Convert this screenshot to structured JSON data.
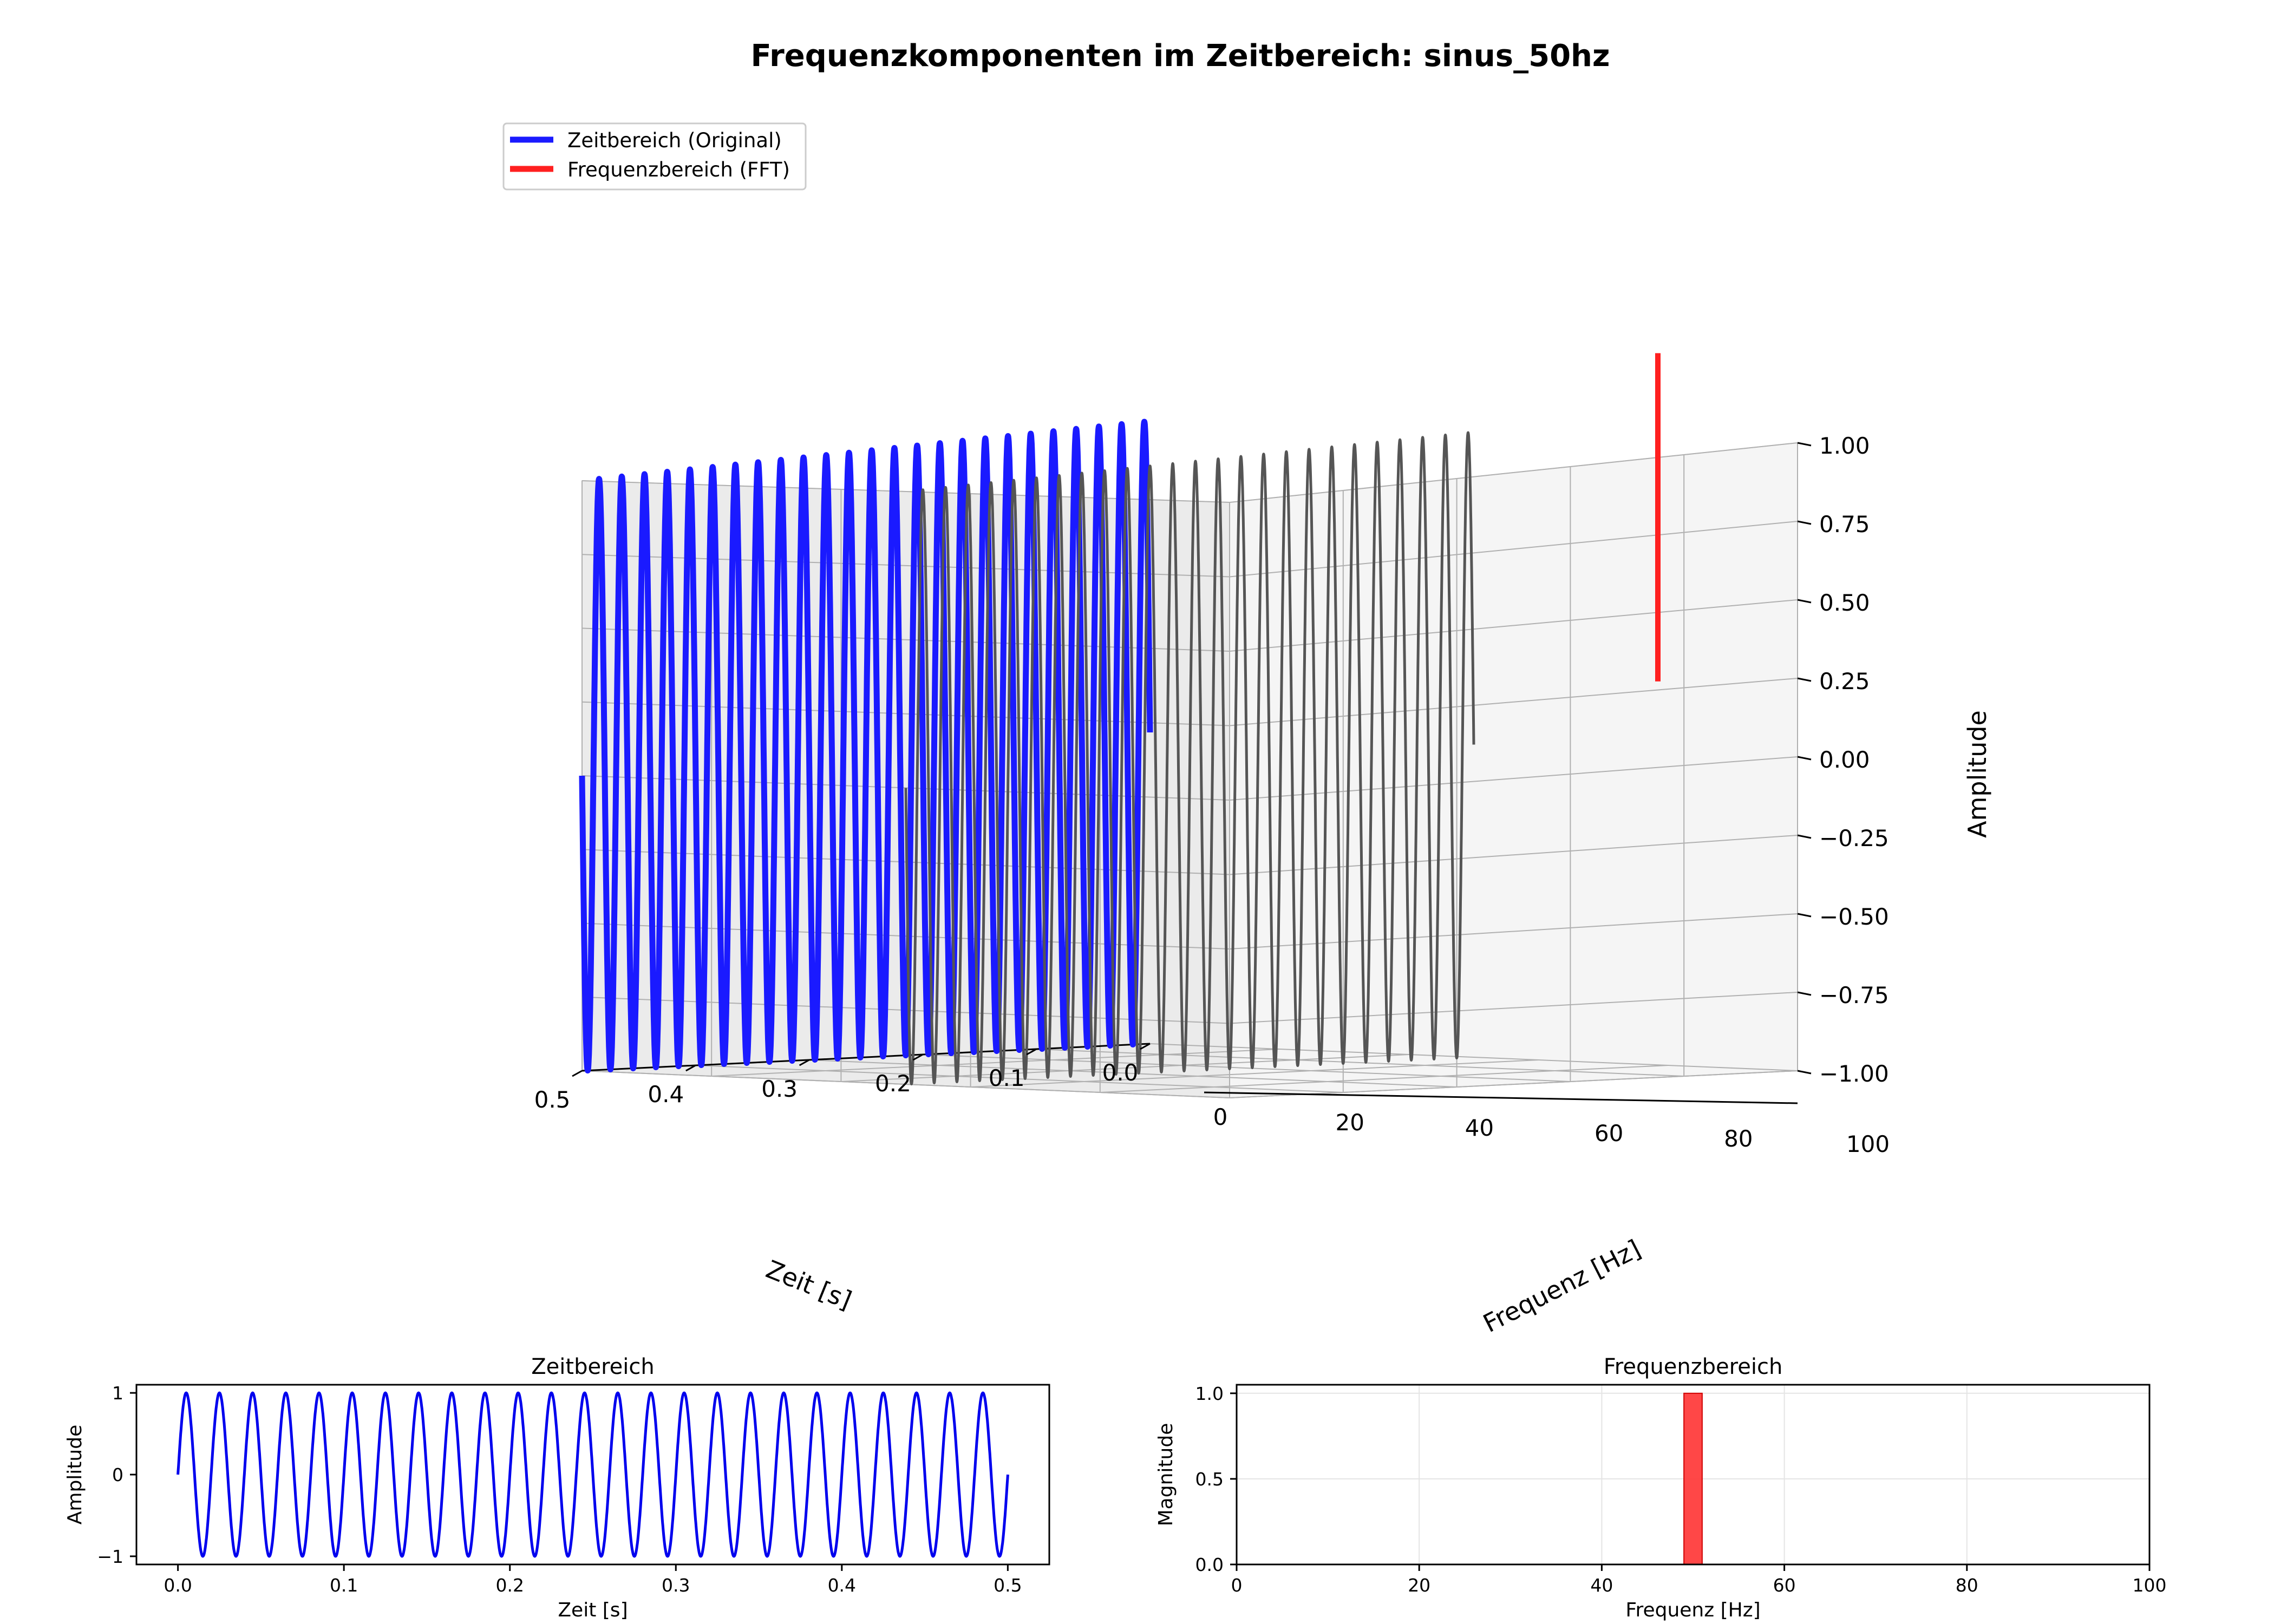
{
  "figure": {
    "title": "Frequenzkomponenten im Zeitbereich: sinus_50hz"
  },
  "legend": {
    "placement": "top-left",
    "items": [
      {
        "label": "Zeitbereich (Original)",
        "color": "#1a1aff"
      },
      {
        "label": "Frequenzbereich (FFT)",
        "color": "#ff2020"
      }
    ]
  },
  "chart_data": [
    {
      "type": "line",
      "projection": "3d",
      "title": "",
      "xlabel": "Zeit [s]",
      "ylabel": "Frequenz [Hz]",
      "zlabel": "Amplitude",
      "xlim": [
        0,
        0.5
      ],
      "ylim": [
        0,
        100
      ],
      "zlim": [
        -1,
        1
      ],
      "x_ticks": [
        "0.0",
        "0.1",
        "0.2",
        "0.3",
        "0.4",
        "0.5"
      ],
      "y_ticks": [
        "0",
        "20",
        "40",
        "60",
        "80",
        "100"
      ],
      "z_ticks": [
        "−1.00",
        "−0.75",
        "−0.50",
        "−0.25",
        "0.00",
        "0.25",
        "0.50",
        "0.75",
        "1.00"
      ],
      "grid": true,
      "series": [
        {
          "name": "Zeitbereich (Original)",
          "kind": "sine",
          "frequency_hz": 50,
          "amplitude": 1.0,
          "t_start": 0,
          "t_end": 0.5,
          "freq_position": 0,
          "color": "#1a1aff"
        },
        {
          "name": "",
          "kind": "sine",
          "frequency_hz": 50,
          "amplitude": 1.0,
          "t_start": 0,
          "t_end": 0.5,
          "freq_position": 50,
          "color": "#555555"
        },
        {
          "name": "Frequenzbereich (FFT)",
          "kind": "segment",
          "time_position": 0,
          "frequency_hz": 50,
          "z_from": -0.3,
          "z_to": 0.75,
          "color": "#ff2020"
        }
      ]
    },
    {
      "type": "line",
      "title": "Zeitbereich",
      "xlabel": "Zeit [s]",
      "ylabel": "Amplitude",
      "xlim": [
        -0.025,
        0.525
      ],
      "ylim": [
        -1.1,
        1.1
      ],
      "x_ticks": [
        "0.0",
        "0.1",
        "0.2",
        "0.3",
        "0.4",
        "0.5"
      ],
      "y_ticks": [
        "−1",
        "0",
        "1"
      ],
      "grid": false,
      "series": [
        {
          "name": "",
          "kind": "sine",
          "frequency_hz": 50,
          "amplitude": 1.0,
          "t_start": 0,
          "t_end": 0.5,
          "color": "#0000ee"
        }
      ]
    },
    {
      "type": "bar",
      "title": "Frequenzbereich",
      "xlabel": "Frequenz [Hz]",
      "ylabel": "Magnitude",
      "xlim": [
        0,
        100
      ],
      "ylim": [
        0,
        1.05
      ],
      "x_ticks": [
        "0",
        "20",
        "40",
        "60",
        "80",
        "100"
      ],
      "y_ticks": [
        "0.0",
        "0.5",
        "1.0"
      ],
      "grid": true,
      "bars": [
        {
          "x": 50,
          "width": 2,
          "value": 1.0,
          "color": "#ff3333"
        }
      ]
    }
  ]
}
